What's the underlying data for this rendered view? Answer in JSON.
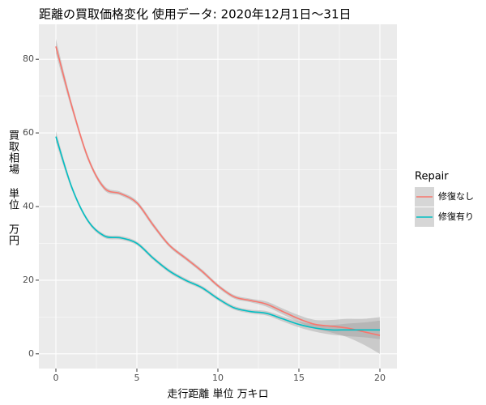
{
  "chart_data": {
    "type": "line",
    "title": "距離の買取価格変化 使用データ: 2020年12月1日～31日",
    "x_label": "走行距離 単位 万キロ",
    "y_label": "買取相場 単位 万円",
    "legend_title": "Repair",
    "x": [
      0,
      1,
      2,
      3,
      4,
      5,
      6,
      7,
      8,
      9,
      10,
      11,
      12,
      13,
      14,
      15,
      16,
      17,
      18,
      19,
      20
    ],
    "series": [
      {
        "name": "修復なし",
        "color": "#F8766D",
        "values": [
          83.5,
          67,
          53,
          45,
          43.5,
          41,
          35,
          29.5,
          26,
          22.5,
          18.5,
          15.5,
          14.5,
          13.5,
          11.5,
          9.5,
          8,
          7.5,
          7,
          6,
          5
        ],
        "lower": [
          81.5,
          66,
          52.3,
          44.4,
          43,
          40.4,
          34.4,
          29,
          25.5,
          22,
          18,
          15,
          14,
          12.8,
          10.7,
          8.5,
          6.8,
          5.8,
          4.5,
          2.5,
          0
        ],
        "upper": [
          85.5,
          68,
          53.7,
          45.6,
          44,
          41.6,
          35.6,
          30,
          26.5,
          23,
          19,
          16,
          15,
          14.2,
          12.3,
          10.5,
          9.2,
          9.2,
          9.5,
          9.5,
          10
        ]
      },
      {
        "name": "修復有り",
        "color": "#00BFC4",
        "values": [
          59,
          45,
          36,
          32,
          31.5,
          30,
          26,
          22.5,
          20,
          18,
          15,
          12.5,
          11.5,
          11,
          9.5,
          8,
          7,
          6.5,
          6.5,
          6.5,
          6.5
        ],
        "lower": [
          57.5,
          44.3,
          35.5,
          31.5,
          31,
          29.5,
          25.5,
          22,
          19.5,
          17.5,
          14.5,
          12,
          11,
          10.4,
          8.8,
          7.2,
          6,
          5.2,
          4.8,
          4.5,
          4
        ],
        "upper": [
          60.5,
          45.7,
          36.5,
          32.5,
          32,
          30.5,
          26.5,
          23,
          20.5,
          18.5,
          15.5,
          13,
          12,
          11.6,
          10.2,
          8.8,
          8,
          7.8,
          8.2,
          8.5,
          9
        ]
      }
    ],
    "xlim": [
      -1.05,
      21.05
    ],
    "xticks": [
      0,
      5,
      10,
      15,
      20
    ],
    "ylim": [
      -4,
      89.5
    ],
    "yticks": [
      0,
      20,
      40,
      60,
      80
    ],
    "grid": true,
    "band_color": "#999999"
  }
}
